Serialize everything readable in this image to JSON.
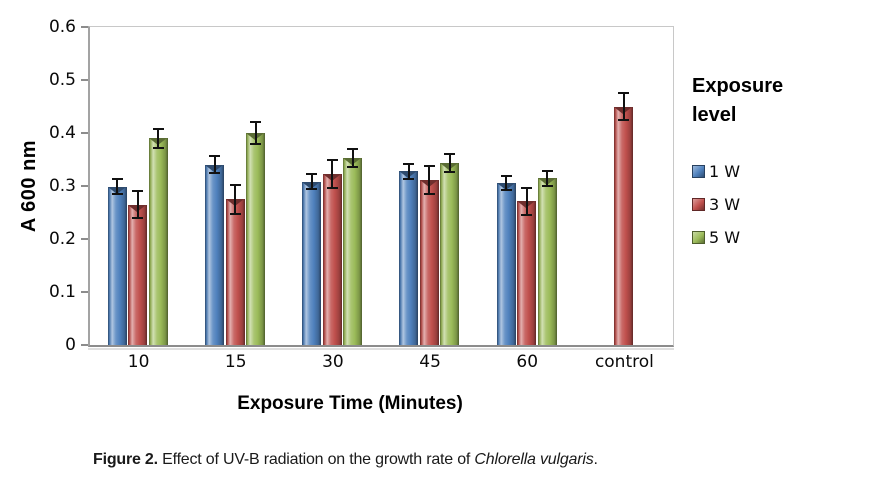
{
  "figure": {
    "caption": {
      "label": "Figure 2.",
      "body": " Effect of UV-B radiation on the growth rate of ",
      "species": "Chlorella vulgaris",
      "suffix": "."
    }
  },
  "chart_data": {
    "type": "bar",
    "title": "",
    "xlabel": "Exposure Time (Minutes)",
    "ylabel": "A 600 nm",
    "categories": [
      "10",
      "15",
      "30",
      "45",
      "60",
      "control"
    ],
    "y_ticks": [
      "0.6",
      "0.5",
      "0.4",
      "0.3",
      "0.2",
      "0.1",
      "0"
    ],
    "ylim": [
      0,
      0.6
    ],
    "grid": false,
    "legend": {
      "title": "Exposure level",
      "position": "right"
    },
    "series": [
      {
        "name": "1 W",
        "color": "#4F81BD",
        "values": [
          0.299,
          0.34,
          0.308,
          0.328,
          0.305,
          null
        ],
        "errors": [
          0.016,
          0.018,
          0.016,
          0.016,
          0.015,
          null
        ]
      },
      {
        "name": "3 W",
        "color": "#C0504D",
        "values": [
          0.265,
          0.275,
          0.323,
          0.311,
          0.271,
          0.45
        ],
        "errors": [
          0.028,
          0.029,
          0.028,
          0.028,
          0.028,
          0.028
        ]
      },
      {
        "name": "5 W",
        "color": "#9BBB59",
        "values": [
          0.39,
          0.4,
          0.353,
          0.343,
          0.315,
          null
        ],
        "errors": [
          0.02,
          0.022,
          0.019,
          0.019,
          0.016,
          null
        ]
      }
    ],
    "axis_colors": {
      "axis_line": "#8c8c8c",
      "frame_line": "#c8c8c8",
      "error_bar": "#111111"
    }
  }
}
